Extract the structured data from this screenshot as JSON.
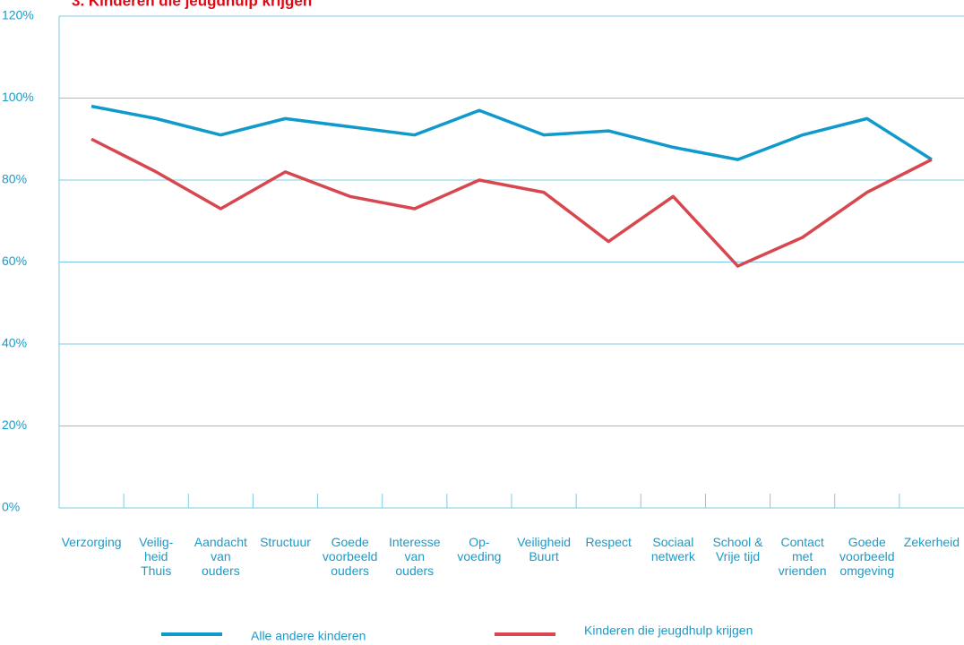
{
  "chart_data": {
    "type": "line",
    "title": "3. Kinderen die jeugdhulp krijgen",
    "categories": [
      "Verzorging",
      "Veilig-\nheid\nThuis",
      "Aandacht\nvan\nouders",
      "Structuur",
      "Goede\nvoorbeeld\nouders",
      "Interesse\nvan\nouders",
      "Op-\nvoeding",
      "Veiligheid\nBuurt",
      "Respect",
      "Sociaal\nnetwerk",
      "School &\nVrije tijd",
      "Contact\nmet\nvrienden",
      "Goede\nvoorbeeld\nomgeving",
      "Zekerheid"
    ],
    "series": [
      {
        "name": "Alle andere kinderen",
        "color": "#0f9acb",
        "values": [
          98,
          95,
          91,
          95,
          93,
          91,
          97,
          91,
          92,
          88,
          85,
          91,
          95,
          85
        ]
      },
      {
        "name": "Kinderen die jeugdhulp krijgen",
        "color": "#d8474f",
        "values": [
          90,
          82,
          73,
          82,
          76,
          73,
          80,
          77,
          65,
          76,
          59,
          66,
          77,
          85
        ]
      }
    ],
    "ylim": [
      0,
      120
    ],
    "yticks": [
      {
        "value": 0,
        "label": "0%"
      },
      {
        "value": 20,
        "label": "20%"
      },
      {
        "value": 40,
        "label": "40%"
      },
      {
        "value": 60,
        "label": "60%"
      },
      {
        "value": 80,
        "label": "80%"
      },
      {
        "value": 100,
        "label": "100%"
      },
      {
        "value": 120,
        "label": "120%"
      }
    ],
    "grid": true
  }
}
